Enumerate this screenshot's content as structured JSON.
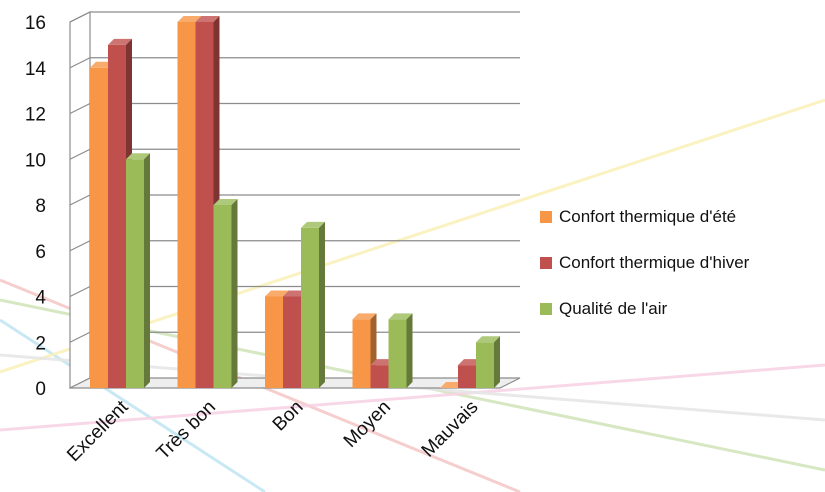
{
  "chart_data": {
    "type": "bar",
    "title": "",
    "xlabel": "",
    "ylabel": "",
    "categories": [
      "Excellent",
      "Très bon",
      "Bon",
      "Moyen",
      "Mauvais"
    ],
    "series": [
      {
        "name": "Confort thermique d'été",
        "values": [
          14,
          16,
          4,
          3,
          0
        ],
        "color": "#f79646"
      },
      {
        "name": "Confort thermique d'hiver",
        "values": [
          15,
          16,
          4,
          1,
          1
        ],
        "color": "#c0504d"
      },
      {
        "name": "Qualité de l'air",
        "values": [
          10,
          8,
          7,
          3,
          2
        ],
        "color": "#9bbb59"
      }
    ],
    "ylim": [
      0,
      16
    ],
    "yticks": [
      0,
      2,
      4,
      6,
      8,
      10,
      12,
      14,
      16
    ],
    "grid": true,
    "legend_position": "right",
    "style": "3d-clustered-bar"
  }
}
